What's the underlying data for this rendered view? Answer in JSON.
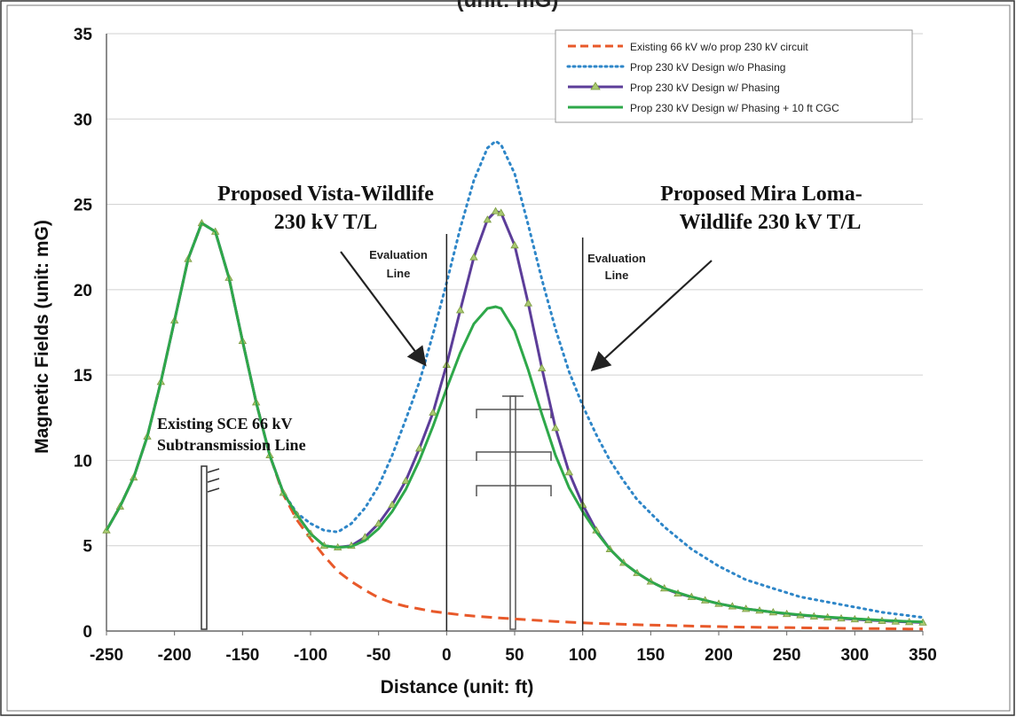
{
  "chart_data": {
    "type": "line",
    "title_partial": "(unit: mG)",
    "xlabel": "Distance (unit: ft)",
    "ylabel": "Magnetic Fields (unit: mG)",
    "xlim": [
      -250,
      350
    ],
    "ylim": [
      0,
      35
    ],
    "xticks": [
      -250,
      -200,
      -150,
      -100,
      -50,
      0,
      50,
      100,
      150,
      200,
      250,
      300,
      350
    ],
    "yticks": [
      0,
      5,
      10,
      15,
      20,
      25,
      30,
      35
    ],
    "grid": "horizontal",
    "legend_position": "top-right",
    "series": [
      {
        "name": "Existing 66 kV w/o prop 230 kV circuit",
        "color": "#e8592a",
        "style": "dashed",
        "x": [
          -250,
          -240,
          -230,
          -220,
          -210,
          -200,
          -190,
          -180,
          -170,
          -160,
          -150,
          -140,
          -130,
          -120,
          -110,
          -100,
          -90,
          -80,
          -70,
          -60,
          -50,
          -40,
          -30,
          -20,
          -10,
          0,
          10,
          20,
          30,
          40,
          50,
          60,
          70,
          80,
          90,
          100,
          120,
          140,
          160,
          180,
          200,
          220,
          240,
          260,
          280,
          300,
          320,
          340,
          350
        ],
        "y": [
          5.9,
          7.3,
          9.0,
          11.4,
          14.6,
          18.2,
          21.8,
          23.9,
          23.4,
          20.7,
          17.0,
          13.4,
          10.3,
          8.0,
          6.5,
          5.4,
          4.4,
          3.5,
          2.9,
          2.4,
          1.95,
          1.65,
          1.45,
          1.3,
          1.15,
          1.05,
          0.95,
          0.88,
          0.82,
          0.76,
          0.71,
          0.66,
          0.61,
          0.56,
          0.52,
          0.48,
          0.42,
          0.37,
          0.33,
          0.29,
          0.26,
          0.23,
          0.21,
          0.19,
          0.17,
          0.15,
          0.14,
          0.12,
          0.12
        ]
      },
      {
        "name": "Prop 230 kV Design w/o Phasing",
        "color": "#2e86c8",
        "style": "dotted",
        "x": [
          -250,
          -240,
          -230,
          -220,
          -210,
          -200,
          -190,
          -180,
          -170,
          -160,
          -150,
          -140,
          -130,
          -120,
          -110,
          -100,
          -90,
          -80,
          -70,
          -60,
          -50,
          -40,
          -30,
          -20,
          -10,
          0,
          10,
          20,
          30,
          36,
          40,
          50,
          60,
          70,
          80,
          90,
          100,
          110,
          120,
          130,
          140,
          150,
          160,
          180,
          200,
          220,
          240,
          260,
          280,
          300,
          320,
          340,
          350
        ],
        "y": [
          5.9,
          7.3,
          9.0,
          11.4,
          14.6,
          18.2,
          21.8,
          23.9,
          23.4,
          20.7,
          17.0,
          13.4,
          10.3,
          8.1,
          6.9,
          6.3,
          5.9,
          5.8,
          6.3,
          7.2,
          8.5,
          10.3,
          12.4,
          14.6,
          17.4,
          20.4,
          23.6,
          26.4,
          28.3,
          28.7,
          28.5,
          26.8,
          23.8,
          20.6,
          17.7,
          15.2,
          13.2,
          11.5,
          10.0,
          8.8,
          7.7,
          6.9,
          6.1,
          4.8,
          3.8,
          3.0,
          2.5,
          2.0,
          1.7,
          1.4,
          1.1,
          0.9,
          0.8
        ]
      },
      {
        "name": "Prop 230 kV Design w/ Phasing",
        "color": "#5c3d99",
        "style": "solid-triangle",
        "x": [
          -250,
          -240,
          -230,
          -220,
          -210,
          -200,
          -190,
          -180,
          -170,
          -160,
          -150,
          -140,
          -130,
          -120,
          -110,
          -100,
          -90,
          -80,
          -70,
          -60,
          -50,
          -40,
          -30,
          -20,
          -10,
          0,
          10,
          20,
          30,
          36,
          40,
          50,
          60,
          70,
          80,
          90,
          100,
          110,
          120,
          130,
          140,
          150,
          160,
          170,
          180,
          190,
          200,
          210,
          220,
          230,
          240,
          250,
          260,
          270,
          280,
          290,
          300,
          310,
          320,
          330,
          340,
          350
        ],
        "y": [
          5.9,
          7.3,
          9.0,
          11.4,
          14.6,
          18.2,
          21.8,
          23.9,
          23.4,
          20.7,
          17.0,
          13.4,
          10.3,
          8.1,
          6.8,
          5.7,
          5.0,
          4.9,
          5.0,
          5.5,
          6.3,
          7.4,
          8.8,
          10.7,
          12.8,
          15.6,
          18.8,
          21.9,
          24.1,
          24.6,
          24.5,
          22.6,
          19.2,
          15.4,
          11.9,
          9.3,
          7.4,
          5.9,
          4.8,
          4.0,
          3.4,
          2.9,
          2.5,
          2.2,
          2.0,
          1.8,
          1.6,
          1.45,
          1.3,
          1.2,
          1.1,
          1.0,
          0.93,
          0.86,
          0.8,
          0.74,
          0.69,
          0.64,
          0.6,
          0.56,
          0.53,
          0.5
        ]
      },
      {
        "name": "Prop 230 kV Design w/ Phasing + 10 ft CGC",
        "color": "#2ea84a",
        "style": "solid",
        "x": [
          -250,
          -240,
          -230,
          -220,
          -210,
          -200,
          -190,
          -180,
          -170,
          -160,
          -150,
          -140,
          -130,
          -120,
          -110,
          -100,
          -90,
          -80,
          -70,
          -60,
          -50,
          -40,
          -30,
          -20,
          -10,
          0,
          10,
          20,
          30,
          36,
          40,
          50,
          60,
          70,
          80,
          90,
          100,
          110,
          120,
          130,
          140,
          150,
          160,
          180,
          200,
          220,
          240,
          260,
          280,
          300,
          320,
          340,
          350
        ],
        "y": [
          5.9,
          7.3,
          9.0,
          11.4,
          14.6,
          18.2,
          21.8,
          23.9,
          23.4,
          20.7,
          17.0,
          13.4,
          10.3,
          8.1,
          6.8,
          5.7,
          5.0,
          4.9,
          4.95,
          5.3,
          6.0,
          7.0,
          8.3,
          10.0,
          12.0,
          14.2,
          16.3,
          18.0,
          18.9,
          19.0,
          18.9,
          17.6,
          15.3,
          12.7,
          10.3,
          8.4,
          7.0,
          5.8,
          4.8,
          4.0,
          3.4,
          2.9,
          2.5,
          2.0,
          1.6,
          1.3,
          1.1,
          0.95,
          0.82,
          0.72,
          0.63,
          0.56,
          0.53
        ]
      }
    ]
  },
  "annotations": {
    "vista": [
      "Proposed Vista-Wildlife",
      "230 kV T/L"
    ],
    "mira": [
      "Proposed Mira Loma-",
      "Wildlife 230 kV T/L"
    ],
    "eval_left": [
      "Evaluation",
      "Line"
    ],
    "eval_right": [
      "Evaluation",
      "Line"
    ],
    "existing": [
      "Existing SCE 66 kV",
      "Subtransmission Line"
    ]
  }
}
